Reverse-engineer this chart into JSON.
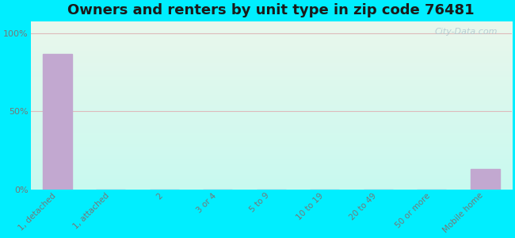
{
  "title": "Owners and renters by unit type in zip code 76481",
  "categories": [
    "1, detached",
    "1, attached",
    "2",
    "3 or 4",
    "5 to 9",
    "10 to 19",
    "20 to 49",
    "50 or more",
    "Mobile home"
  ],
  "values": [
    87,
    0,
    0,
    0,
    0,
    0,
    0,
    0,
    13
  ],
  "bar_color": "#c2a8d0",
  "yticks": [
    0,
    50,
    100
  ],
  "ytick_labels": [
    "0%",
    "50%",
    "100%"
  ],
  "ylim": [
    0,
    108
  ],
  "bg_outer": "#00eeff",
  "bg_top": "#eaf7ec",
  "bg_bottom": "#c8faf0",
  "grid_color": "#ddbbbb",
  "title_fontsize": 13,
  "watermark": "City-Data.com",
  "tick_fontsize": 7.5,
  "ytick_fontsize": 8,
  "tick_color": "#777777"
}
